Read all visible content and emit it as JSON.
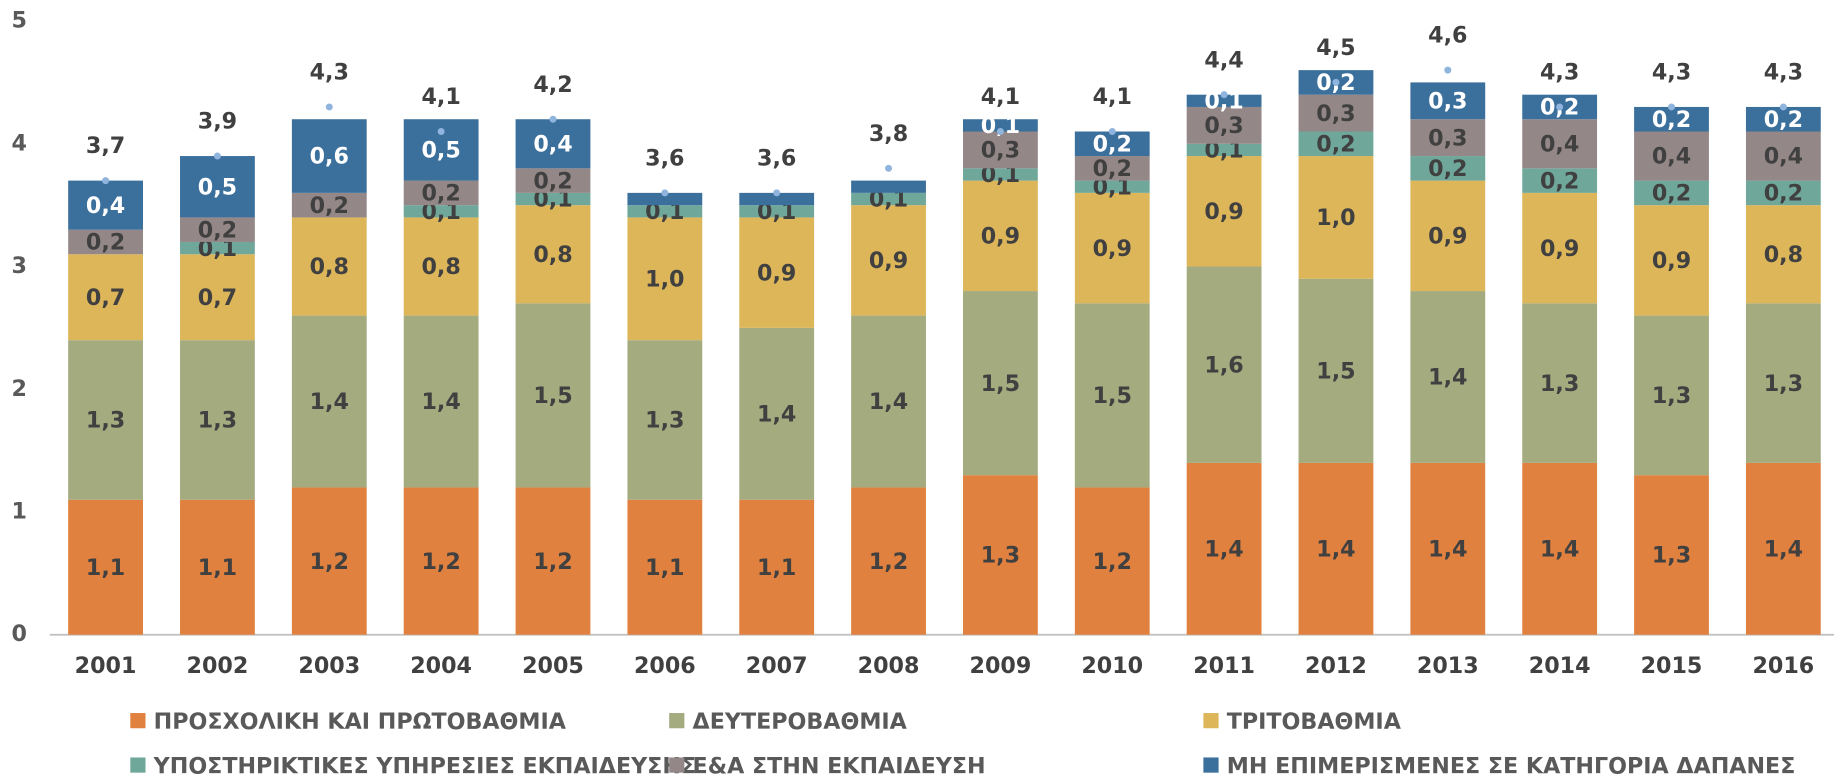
{
  "chart_data": {
    "type": "stacked_bar",
    "categories": [
      "2001",
      "2002",
      "2003",
      "2004",
      "2005",
      "2006",
      "2007",
      "2008",
      "2009",
      "2010",
      "2011",
      "2012",
      "2013",
      "2014",
      "2015",
      "2016"
    ],
    "series": [
      {
        "name": "ΠΡΟΣΧΟΛΙΚΗ ΚΑΙ ΠΡΩΤΟΒΑΘΜΙΑ",
        "color": "#e0813f",
        "values": [
          1.1,
          1.1,
          1.2,
          1.2,
          1.2,
          1.1,
          1.1,
          1.2,
          1.3,
          1.2,
          1.4,
          1.4,
          1.4,
          1.4,
          1.3,
          1.4
        ],
        "value_labels": [
          "1,1",
          "1,1",
          "1,2",
          "1,2",
          "1,2",
          "1,1",
          "1,1",
          "1,2",
          "1,3",
          "1,2",
          "1,4",
          "1,4",
          "1,4",
          "1,4",
          "1,3",
          "1,4"
        ]
      },
      {
        "name": "ΔΕΥΤΕΡΟΒΑΘΜΙΑ",
        "color": "#a3ab7f",
        "values": [
          1.3,
          1.3,
          1.4,
          1.4,
          1.5,
          1.3,
          1.4,
          1.4,
          1.5,
          1.5,
          1.6,
          1.5,
          1.4,
          1.3,
          1.3,
          1.3
        ],
        "value_labels": [
          "1,3",
          "1,3",
          "1,4",
          "1,4",
          "1,5",
          "1,3",
          "1,4",
          "1,4",
          "1,5",
          "1,5",
          "1,6",
          "1,5",
          "1,4",
          "1,3",
          "1,3",
          "1,3"
        ]
      },
      {
        "name": "ΤΡΙΤΟΒΑΘΜΙΑ",
        "color": "#ddb65a",
        "values": [
          0.7,
          0.7,
          0.8,
          0.8,
          0.8,
          1.0,
          0.9,
          0.9,
          0.9,
          0.9,
          0.9,
          1.0,
          0.9,
          0.9,
          0.9,
          0.8
        ],
        "value_labels": [
          "0,7",
          "0,7",
          "0,8",
          "0,8",
          "0,8",
          "1,0",
          "0,9",
          "0,9",
          "0,9",
          "0,9",
          "0,9",
          "1,0",
          "0,9",
          "0,9",
          "0,9",
          "0,8"
        ]
      },
      {
        "name": "ΥΠΟΣΤΗΡΙΚΤΙΚΕΣ ΥΠΗΡΕΣΙΕΣ ΕΚΠΑΙΔΕΥΣΗΣ",
        "color": "#6fa79b",
        "values": [
          0,
          0.1,
          0,
          0.1,
          0.1,
          0.1,
          0.1,
          0.1,
          0.1,
          0.1,
          0.1,
          0.2,
          0.2,
          0.2,
          0.2,
          0.2
        ],
        "value_labels": [
          null,
          "0,1",
          null,
          "0,1",
          "0,1",
          "0,1",
          "0,1",
          "0,1",
          "0,1",
          "0,1",
          "0,1",
          "0,2",
          "0,2",
          "0,2",
          "0,2",
          "0,2"
        ]
      },
      {
        "name": "Ε&Α ΣΤΗΝ ΕΚΠΑΙΔΕΥΣΗ",
        "color": "#938787",
        "values": [
          0.2,
          0.2,
          0.2,
          0.2,
          0.2,
          0,
          0,
          0,
          0.3,
          0.2,
          0.3,
          0.3,
          0.3,
          0.4,
          0.4,
          0.4
        ],
        "value_labels": [
          "0,2",
          "0,2",
          "0,2",
          "0,2",
          "0,2",
          null,
          null,
          null,
          "0,3",
          "0,2",
          "0,3",
          "0,3",
          "0,3",
          "0,4",
          "0,4",
          "0,4"
        ]
      },
      {
        "name": "ΜΗ ΕΠΙΜΕΡΙΣΜΕΝΕΣ ΣΕ ΚΑΤΗΓΟΡΙΑ ΔΑΠΑΝΕΣ",
        "color": "#3b6f9c",
        "values": [
          0.4,
          0.5,
          0.6,
          0.5,
          0.4,
          0.1,
          0.1,
          0.1,
          0.1,
          0.2,
          0.1,
          0.2,
          0.3,
          0.2,
          0.2,
          0.2
        ],
        "value_labels": [
          "0,4",
          "0,5",
          "0,6",
          "0,5",
          "0,4",
          null,
          null,
          null,
          "0,1",
          "0,2",
          "0,1",
          "0,2",
          "0,3",
          "0,2",
          "0,2",
          "0,2"
        ]
      }
    ],
    "totals": {
      "color": "#8fb4dd",
      "values": [
        3.7,
        3.9,
        4.3,
        4.1,
        4.2,
        3.6,
        3.6,
        3.8,
        4.1,
        4.1,
        4.4,
        4.5,
        4.6,
        4.3,
        4.3,
        4.3
      ],
      "value_labels": [
        "3,7",
        "3,9",
        "4,3",
        "4,1",
        "4,2",
        "3,6",
        "3,6",
        "3,8",
        "4,1",
        "4,1",
        "4,4",
        "4,5",
        "4,6",
        "4,3",
        "4,3",
        "4,3"
      ]
    },
    "ylim": [
      0,
      5
    ],
    "yticks": [
      0,
      1,
      2,
      3,
      4,
      5
    ],
    "grid": false
  }
}
